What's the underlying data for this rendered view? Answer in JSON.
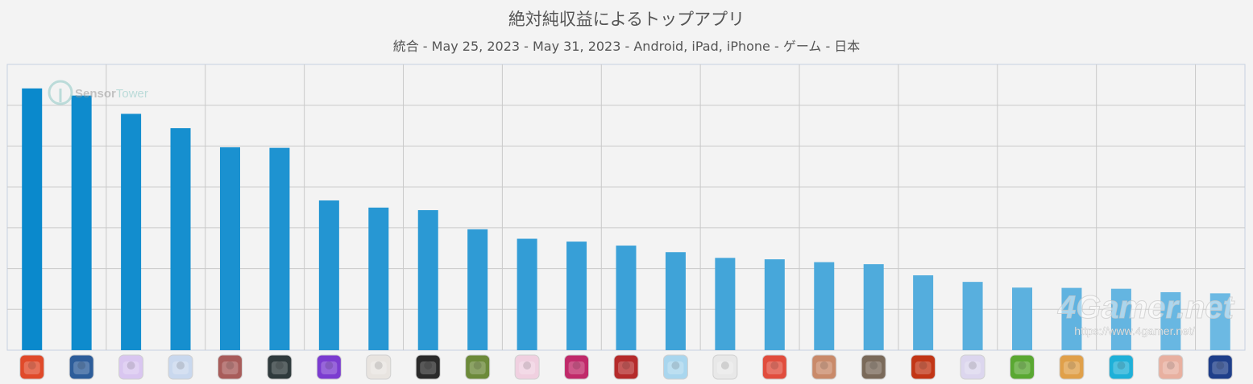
{
  "chart_data": {
    "type": "bar",
    "title": "絶対純収益によるトップアプリ",
    "subtitle": "統合 - May 25, 2023 - May 31, 2023 - Android, iPad, iPhone - ゲーム - 日本",
    "ylim": [
      0,
      100
    ],
    "grid": true,
    "categories": [
      "",
      "",
      "",
      "",
      "",
      "",
      "",
      "",
      "",
      "",
      "",
      "",
      "",
      "",
      "",
      "",
      "",
      "",
      "",
      "",
      "",
      "",
      "",
      "",
      ""
    ],
    "values": [
      91.6,
      89.1,
      82.7,
      77.7,
      71.0,
      70.8,
      52.4,
      49.9,
      49.0,
      42.3,
      39.0,
      38.0,
      36.6,
      34.3,
      32.3,
      31.8,
      30.8,
      30.1,
      26.2,
      23.9,
      21.9,
      21.8,
      21.5,
      20.3,
      19.9
    ],
    "icon_colors": [
      "#e04a2a",
      "#2d5d9a",
      "#d9c6f0",
      "#c9d8ee",
      "#a85c5a",
      "#2f3a3c",
      "#7b3cd0",
      "#e8e4e0",
      "#2a2a2a",
      "#6c8a3a",
      "#f0d0e0",
      "#c02a6a",
      "#b52b2b",
      "#a9d6ee",
      "#e8e8e8",
      "#e14d3d",
      "#c98a6a",
      "#7a6a5a",
      "#c23616",
      "#dcd6ee",
      "#5aa832",
      "#e0a04a",
      "#1fb0d8",
      "#e8b0a0",
      "#1f3f8a"
    ],
    "bar_color_start": "#0a89cc",
    "bar_color_end": "#6cb9e3"
  },
  "watermark": {
    "brand_part1": "Sensor",
    "brand_part2": "Tower",
    "site": "4Gamer.net",
    "url": "https://www.4gamer.net/"
  }
}
